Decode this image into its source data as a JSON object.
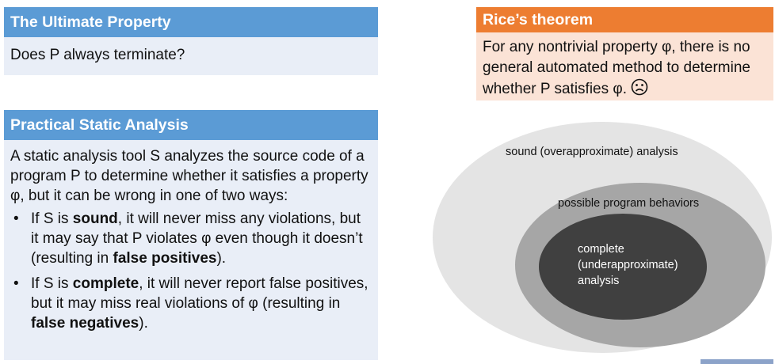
{
  "ultimate": {
    "title": "The Ultimate Property",
    "question": "Does P always terminate?"
  },
  "practical": {
    "title": "Practical Static Analysis",
    "intro": "A static analysis tool S analyzes the source code of a program P to determine whether it satisfies a property φ, but it can be wrong in one of two ways:",
    "bullets": [
      {
        "bullet": "•",
        "pre": "If S is ",
        "bold1": "sound",
        "mid": ", it will never miss any violations, but it may say that P violates φ even though it doesn’t (resulting in ",
        "bold2": "false positives",
        "post": ")."
      },
      {
        "bullet": "•",
        "pre": "If S is ",
        "bold1": "complete",
        "mid": ", it will never report false positives, but it may miss real violations of φ (resulting in ",
        "bold2": "false negatives",
        "post": ")."
      }
    ]
  },
  "rice": {
    "title": "Rice’s theorem",
    "text": "For any nontrivial property φ, there is no general automated method to determine whether P satisfies φ.",
    "icon": "frown-icon"
  },
  "diagram": {
    "outer_label": "sound (overapproximate) analysis",
    "middle_label": "possible program behaviors",
    "inner_line1": "complete",
    "inner_line2": "(underapproximate)",
    "inner_line3": "analysis",
    "colors": {
      "outer": "#e4e4e4",
      "middle": "#a6a6a6",
      "inner": "#404040"
    }
  },
  "colors": {
    "blue_header": "#5b9bd5",
    "blue_body": "#e9eef7",
    "orange_header": "#ed7d31",
    "orange_body": "#fbe3d6"
  }
}
